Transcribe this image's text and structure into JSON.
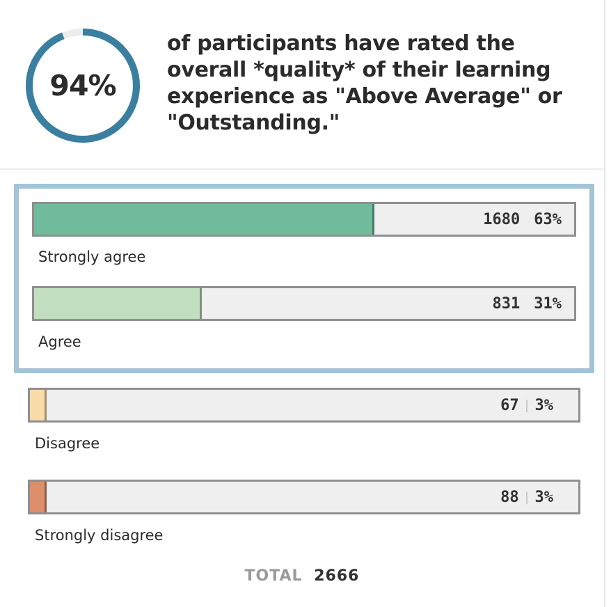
{
  "summary": {
    "percent": 94,
    "percent_label": "94%",
    "headline": "of participants have rated the overall *quality* of their learning experience as \"Above Average\" or \"Outstanding.\""
  },
  "colors": {
    "gauge_ring": "#3a7fa0",
    "gauge_track": "#ececec",
    "highlight_border": "#a2c4d6",
    "strongly_agree": "#6fbb9c",
    "agree": "#c2dfc0",
    "disagree": "#f8dca8",
    "strongly_disagree": "#dc8f6a"
  },
  "chart_data": {
    "type": "bar",
    "orientation": "horizontal",
    "categories": [
      "Strongly agree",
      "Agree",
      "Disagree",
      "Strongly disagree"
    ],
    "counts": [
      1680,
      831,
      67,
      88
    ],
    "percents": [
      "63%",
      "31%",
      "3%",
      "3%"
    ],
    "values": [
      63,
      31,
      3,
      3
    ],
    "highlighted": [
      "Strongly agree",
      "Agree"
    ],
    "total_label": "TOTAL",
    "total": 2666
  }
}
